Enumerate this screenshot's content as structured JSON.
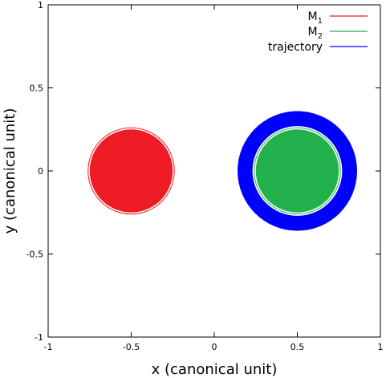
{
  "chart_data": {
    "type": "scatter",
    "title": "",
    "xlabel": "x (canonical unit)",
    "ylabel": "y (canonical unit)",
    "xlim": [
      -1,
      1
    ],
    "ylim": [
      -1,
      1
    ],
    "xticks": [
      -1,
      -0.5,
      0,
      0.5,
      1
    ],
    "yticks": [
      -1,
      -0.5,
      0,
      0.5,
      1
    ],
    "xtick_labels": [
      "-1",
      "-0.5",
      "0",
      "0.5",
      "1"
    ],
    "ytick_labels": [
      "-1",
      "-0.5",
      "0",
      "0.5",
      "1"
    ],
    "grid": false,
    "legend_position": "top-right",
    "series": [
      {
        "label_base": "M",
        "label_sub": "1",
        "color": "#ee1d25",
        "shape": "filled-disk",
        "center": [
          -0.5,
          0
        ],
        "radius": 0.25
      },
      {
        "label_base": "M",
        "label_sub": "2",
        "color": "#22b14c",
        "shape": "filled-disk",
        "center": [
          0.5,
          0
        ],
        "radius": 0.25
      },
      {
        "name": "trajectory",
        "color": "#0000ff",
        "shape": "ring",
        "center": [
          0.5,
          0
        ],
        "inner_radius": 0.27,
        "outer_radius": 0.36
      }
    ]
  }
}
